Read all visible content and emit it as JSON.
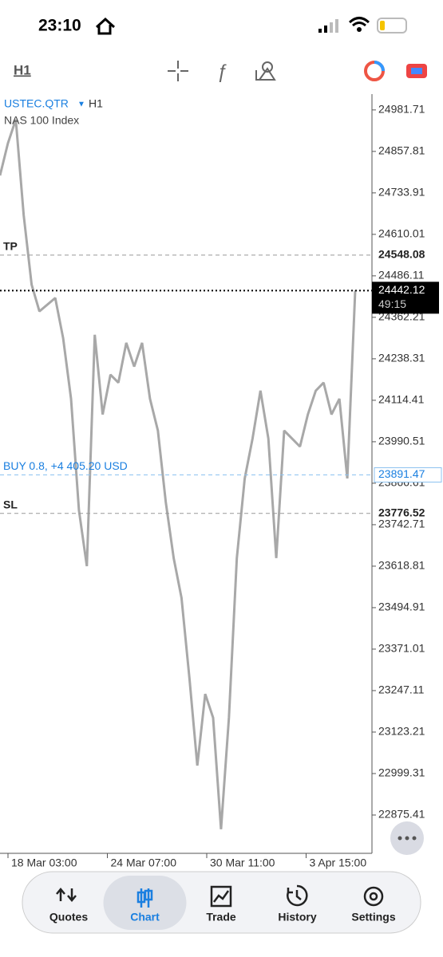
{
  "status_bar": {
    "time": "23:10"
  },
  "toolbar": {
    "timeframe": "H1"
  },
  "chart": {
    "symbol": "USTEC.QTR",
    "symbol_timeframe": "H1",
    "description": "NAS 100 Index",
    "ylim": [
      22761,
      25029
    ],
    "yticks": [
      24981.71,
      24857.81,
      24733.91,
      24610.01,
      24486.11,
      24362.21,
      24238.31,
      24114.41,
      23990.51,
      23866.61,
      23742.71,
      23618.81,
      23494.91,
      23371.01,
      23247.11,
      23123.21,
      22999.31,
      22875.41
    ],
    "prices": [
      24786,
      24882,
      24953,
      24667,
      24460,
      24380,
      24400,
      24420,
      24300,
      24119,
      23786,
      23619,
      24310,
      24072,
      24191,
      24167,
      24286,
      24215,
      24286,
      24119,
      24024,
      23810,
      23643,
      23524,
      23285,
      23023,
      23237,
      23166,
      22833,
      23166,
      23643,
      23881,
      24000,
      24143,
      24000,
      23643,
      24024,
      24000,
      23976,
      24072,
      24143,
      24167,
      24072,
      24119,
      23881,
      24442
    ],
    "tp": {
      "label": "TP",
      "price": 24548.08
    },
    "sl": {
      "label": "SL",
      "price": 23776.52
    },
    "position": {
      "label": "BUY 0.8, +4 405.20 USD",
      "price": 23891.47
    },
    "current": {
      "price": 24442.12,
      "countdown": "49:15"
    },
    "dates": [
      "18 Mar 03:00",
      "24 Mar 07:00",
      "30 Mar 11:00",
      "3 Apr 15:00"
    ]
  },
  "tabs": [
    {
      "label": "Quotes"
    },
    {
      "label": "Chart"
    },
    {
      "label": "Trade"
    },
    {
      "label": "History"
    },
    {
      "label": "Settings"
    }
  ],
  "active_tab": 1
}
